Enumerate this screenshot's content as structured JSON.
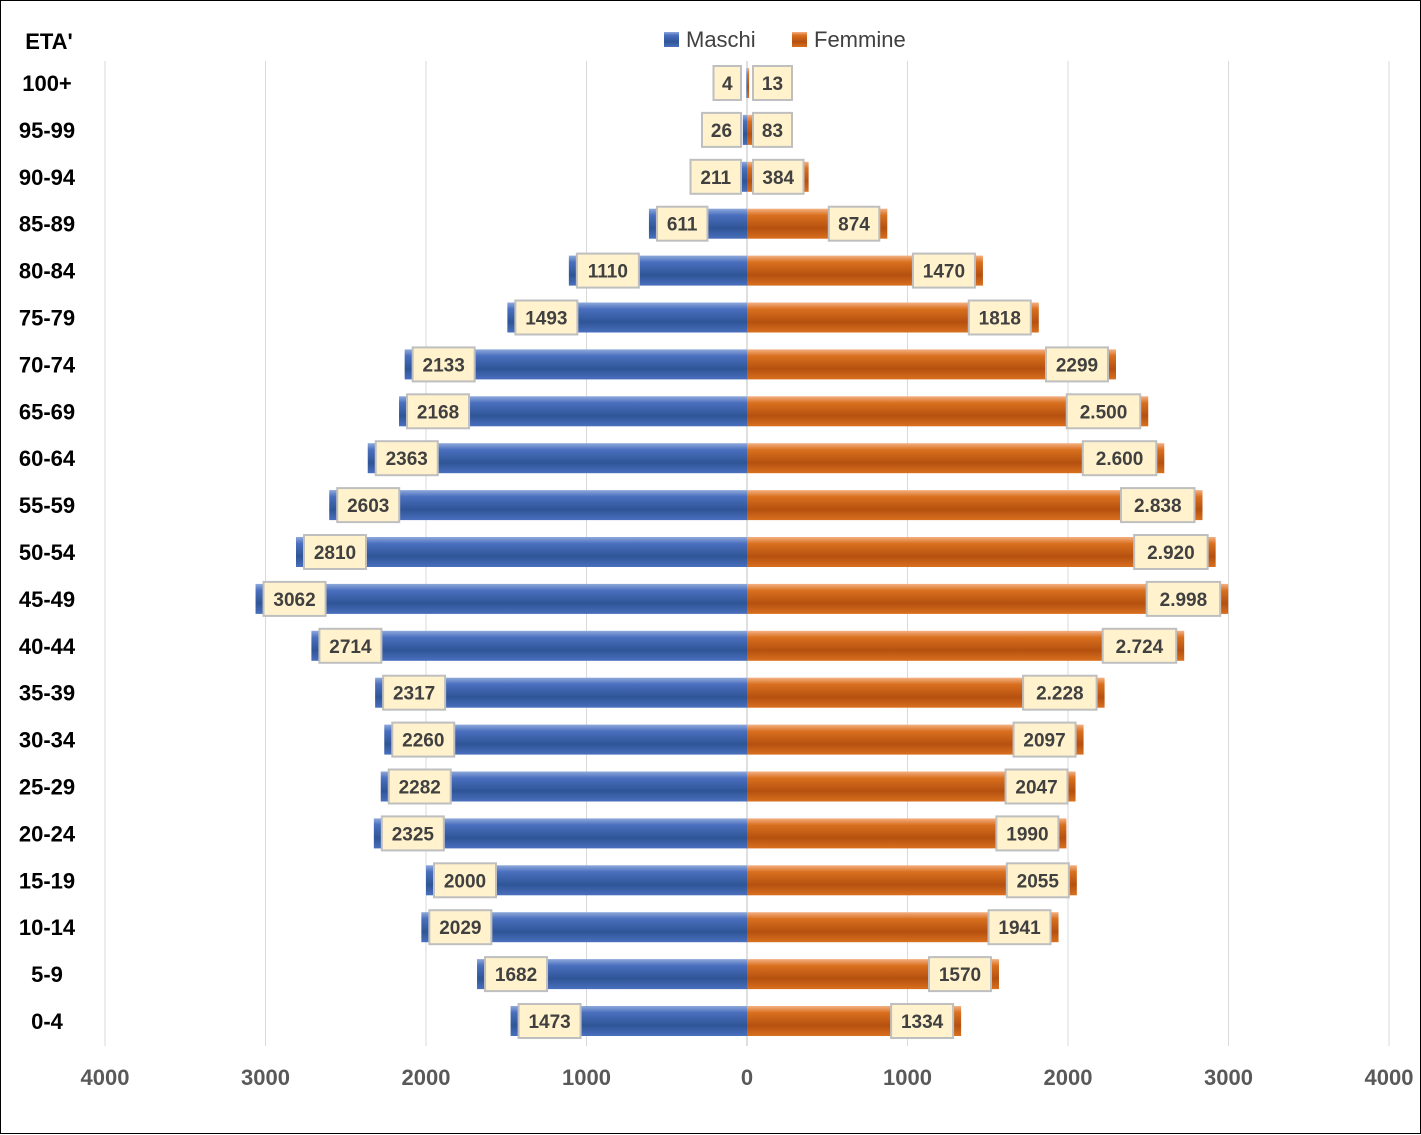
{
  "chart_data": {
    "type": "bar",
    "orientation": "horizontal-pyramid",
    "y_axis_title": "ETA'",
    "categories": [
      "100+",
      "95-99",
      "90-94",
      "85-89",
      "80-84",
      "75-79",
      "70-74",
      "65-69",
      "60-64",
      "55-59",
      "50-54",
      "45-49",
      "40-44",
      "35-39",
      "30-34",
      "25-29",
      "20-24",
      "15-19",
      "10-14",
      "5-9",
      "0-4"
    ],
    "series": [
      {
        "name": "Maschi",
        "side": "left",
        "color": "#3a5fa8",
        "values": [
          4,
          26,
          211,
          611,
          1110,
          1493,
          2133,
          2168,
          2363,
          2603,
          2810,
          3062,
          2714,
          2317,
          2260,
          2282,
          2325,
          2000,
          2029,
          1682,
          1473
        ],
        "labels": [
          "4",
          "26",
          "211",
          "611",
          "1110",
          "1493",
          "2133",
          "2168",
          "2363",
          "2603",
          "2810",
          "3062",
          "2714",
          "2317",
          "2260",
          "2282",
          "2325",
          "2000",
          "2029",
          "1682",
          "1473"
        ]
      },
      {
        "name": "Femmine",
        "side": "right",
        "color": "#c55a11",
        "values": [
          13,
          83,
          384,
          874,
          1470,
          1818,
          2299,
          2500,
          2600,
          2838,
          2920,
          2998,
          2724,
          2228,
          2097,
          2047,
          1990,
          2055,
          1941,
          1570,
          1334
        ],
        "labels": [
          "13",
          "83",
          "384",
          "874",
          "1470",
          "1818",
          "2299",
          "2.500",
          "2.600",
          "2.838",
          "2.920",
          "2.998",
          "2.724",
          "2.228",
          "2097",
          "2047",
          "1990",
          "2055",
          "1941",
          "1570",
          "1334"
        ]
      }
    ],
    "x_ticks": [
      -4000,
      -3000,
      -2000,
      -1000,
      0,
      1000,
      2000,
      3000,
      4000
    ],
    "x_tick_labels": [
      "4000",
      "3000",
      "2000",
      "1000",
      "0",
      "1000",
      "2000",
      "3000",
      "4000"
    ],
    "xlim": [
      -4000,
      4000
    ],
    "grid": "vertical",
    "legend_position": "top-center",
    "colors": {
      "label_box_fill": "#fff2cc",
      "label_box_stroke": "#bfbfbf",
      "grid": "#d9d9d9"
    }
  }
}
